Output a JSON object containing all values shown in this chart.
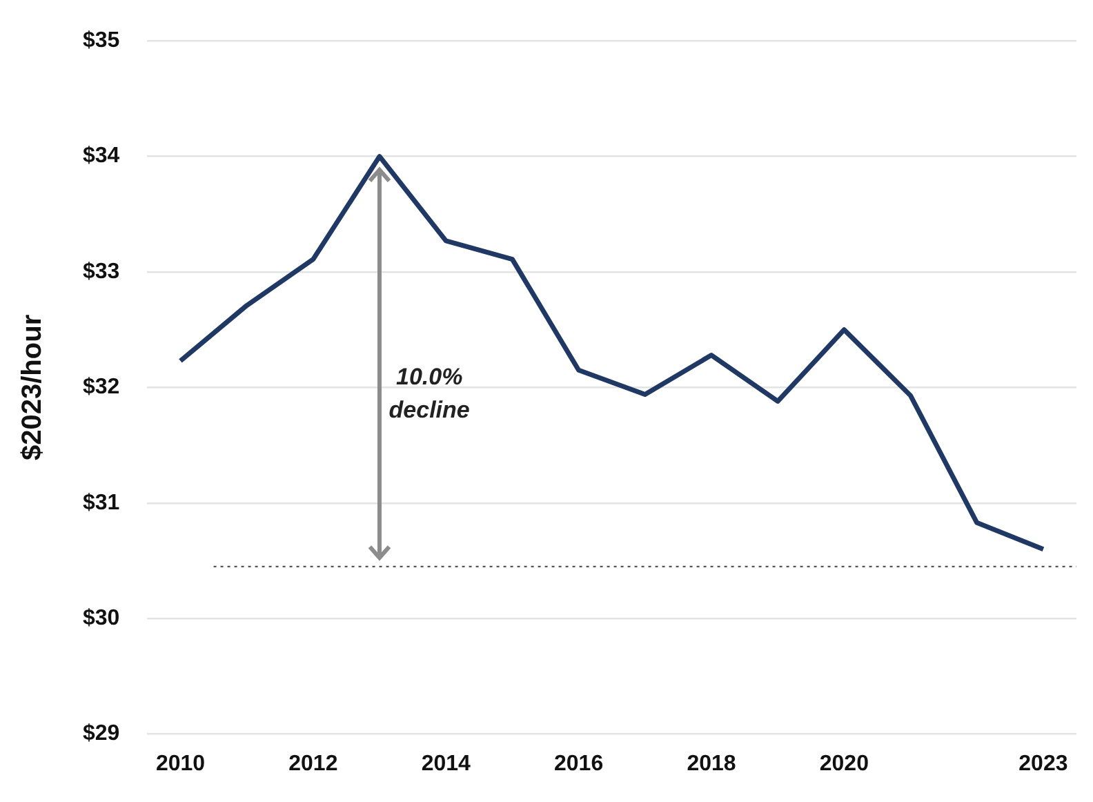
{
  "chart_data": {
    "type": "line",
    "ylabel": "$2023/hour",
    "categories": [
      "2010",
      null,
      "2012",
      null,
      "2014",
      null,
      "2016",
      null,
      "2018",
      null,
      "2020",
      null,
      null,
      "2023"
    ],
    "series": [
      {
        "color": "#1f3864",
        "values": [
          32.23,
          32.71,
          33.11,
          34.0,
          33.27,
          33.11,
          32.15,
          31.94,
          32.28,
          31.88,
          32.5,
          31.93,
          30.83,
          30.6
        ]
      }
    ],
    "ylim": [
      29,
      35
    ],
    "yticks": [
      {
        "value": 29,
        "label": "$29"
      },
      {
        "value": 30,
        "label": "$30"
      },
      {
        "value": 31,
        "label": "$31"
      },
      {
        "value": 32,
        "label": "$32"
      },
      {
        "value": 33,
        "label": "$33"
      },
      {
        "value": 34,
        "label": "$34"
      },
      {
        "value": 35,
        "label": "$35"
      }
    ],
    "grid": "y",
    "legend": false,
    "marker": "none",
    "line_style": "solid",
    "ref_lines": [
      {
        "axis": "y",
        "value": 30.45,
        "color": "#555555",
        "line_style": "dotted"
      }
    ],
    "annotations": [
      "10.0%\ndecline"
    ]
  }
}
